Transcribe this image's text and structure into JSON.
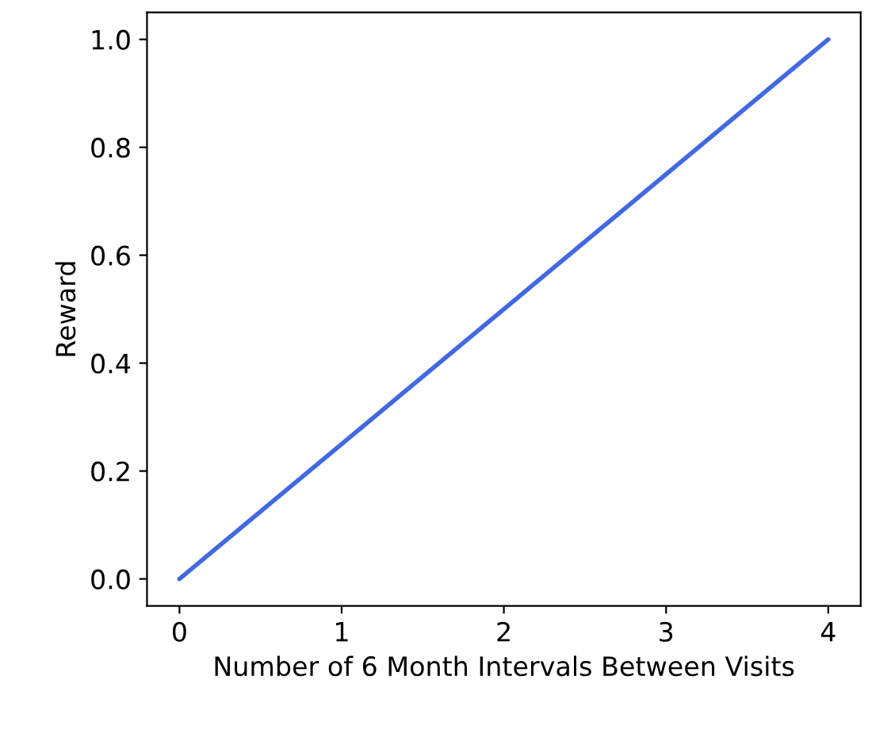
{
  "chart_data": {
    "type": "line",
    "xlabel": "Number of 6 Month Intervals Between Visits",
    "ylabel": "Reward",
    "x": [
      0,
      1,
      2,
      3,
      4
    ],
    "series": [
      {
        "color": "#4169e1",
        "values": [
          0,
          0.25,
          0.5,
          0.75,
          1.0
        ]
      }
    ],
    "xlim": [
      -0.2,
      4.2
    ],
    "ylim": [
      -0.05,
      1.05
    ],
    "xticks": [
      0,
      1,
      2,
      3,
      4
    ],
    "yticks": [
      {
        "value": 0,
        "label": "0.0"
      },
      {
        "value": 0.2,
        "label": "0.2"
      },
      {
        "value": 0.4,
        "label": "0.4"
      },
      {
        "value": 0.6,
        "label": "0.6"
      },
      {
        "value": 0.8,
        "label": "0.8"
      },
      {
        "value": 1.0,
        "label": "1.0"
      }
    ],
    "grid": false
  }
}
